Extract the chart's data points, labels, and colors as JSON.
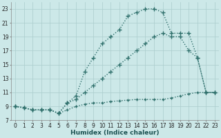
{
  "xlabel": "Humidex (Indice chaleur)",
  "bg_color": "#cce8e8",
  "grid_color": "#aacccc",
  "line_color": "#2d6e6a",
  "xlim": [
    -0.5,
    23.5
  ],
  "ylim": [
    7,
    24
  ],
  "xticks": [
    0,
    1,
    2,
    3,
    4,
    5,
    6,
    7,
    8,
    9,
    10,
    11,
    12,
    13,
    14,
    15,
    16,
    17,
    18,
    19,
    20,
    21,
    22,
    23
  ],
  "yticks": [
    7,
    9,
    11,
    13,
    15,
    17,
    19,
    21,
    23
  ],
  "series1_x": [
    0,
    1,
    2,
    3,
    4,
    5,
    6,
    7,
    8,
    9,
    10,
    11,
    12,
    13,
    14,
    15,
    16,
    17,
    18,
    19,
    20,
    21,
    22,
    23
  ],
  "series1_y": [
    9,
    8.8,
    8.5,
    8.5,
    8.5,
    8,
    8.5,
    9,
    9.3,
    9.5,
    9.5,
    9.7,
    9.8,
    9.9,
    10,
    10,
    10,
    10,
    10.2,
    10.5,
    10.8,
    11,
    11,
    11
  ],
  "series2_x": [
    0,
    1,
    2,
    3,
    4,
    5,
    6,
    7,
    8,
    9,
    10,
    11,
    12,
    13,
    14,
    15,
    16,
    17,
    18,
    19,
    20,
    21,
    22,
    23
  ],
  "series2_y": [
    9,
    8.8,
    8.5,
    8.5,
    8.5,
    8,
    9.5,
    10.5,
    14,
    16,
    18,
    19,
    20,
    22,
    22.5,
    23,
    23,
    22.5,
    19.5,
    19.5,
    19.5,
    16,
    11,
    11
  ],
  "series3_x": [
    0,
    1,
    2,
    3,
    4,
    5,
    6,
    7,
    8,
    9,
    10,
    11,
    12,
    13,
    14,
    15,
    16,
    17,
    18,
    19,
    20,
    21,
    22,
    23
  ],
  "series3_y": [
    9,
    8.8,
    8.5,
    8.5,
    8.5,
    8,
    9.5,
    10,
    11,
    12,
    13,
    14,
    15,
    16,
    17,
    18,
    19,
    19.5,
    19,
    19,
    17,
    16,
    11,
    11
  ],
  "marker_x2": [
    0,
    1,
    2,
    3,
    4,
    5,
    6,
    7,
    8,
    9,
    10,
    11,
    12,
    13,
    14,
    15,
    16,
    17,
    18,
    19,
    20,
    21,
    22,
    23
  ],
  "marker_x3": [
    0,
    1,
    2,
    3,
    4,
    5,
    6,
    7,
    8,
    9,
    10,
    11,
    12,
    13,
    14,
    15,
    16,
    17,
    18,
    19,
    20,
    21,
    22,
    23
  ],
  "markersize": 3,
  "linewidth": 1.0,
  "tick_fontsize": 5.5,
  "xlabel_fontsize": 6.5
}
